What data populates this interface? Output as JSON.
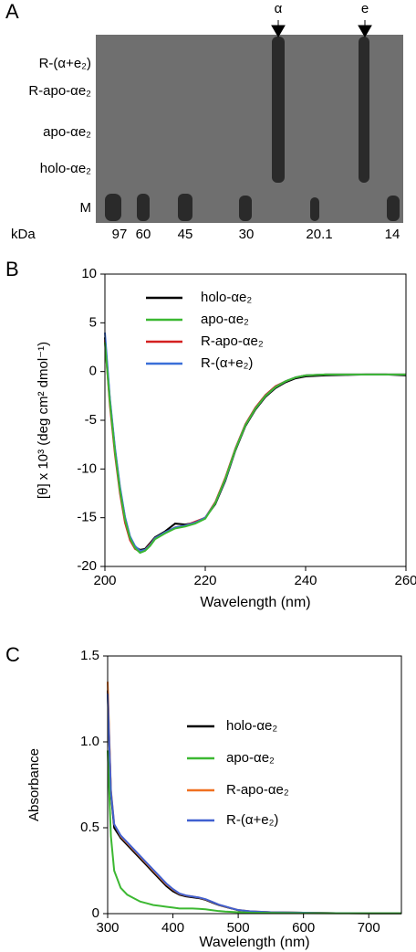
{
  "panel_a": {
    "label": "A",
    "arrows": [
      "α",
      "e"
    ],
    "lanes": [
      "R-(α+e₂)",
      "R-apo-αe₂",
      "apo-αe₂",
      "holo-αe₂",
      "M"
    ],
    "unit": "kDa",
    "markers": [
      "97",
      "60",
      "45",
      "30",
      "20.1",
      "14"
    ]
  },
  "chart_data": [
    {
      "type": "line",
      "panel_label": "B",
      "xlabel": "Wavelength  (nm)",
      "ylabel": "[θ] x 10³  (deg cm² dmol⁻¹)",
      "x": [
        200,
        201,
        202,
        203,
        204,
        205,
        206,
        207,
        208,
        209,
        210,
        212,
        214,
        216,
        218,
        220,
        222,
        224,
        226,
        228,
        230,
        232,
        234,
        236,
        238,
        240,
        244,
        248,
        252,
        256,
        260
      ],
      "series": [
        {
          "name": "holo-αe₂",
          "color": "#000000",
          "values": [
            3.5,
            -3,
            -8,
            -12,
            -15,
            -17,
            -18,
            -18.3,
            -18.2,
            -17.6,
            -17,
            -16.4,
            -15.6,
            -15.7,
            -15.5,
            -15,
            -13.6,
            -11.2,
            -8.1,
            -5.6,
            -3.9,
            -2.6,
            -1.7,
            -1.1,
            -0.7,
            -0.5,
            -0.4,
            -0.35,
            -0.3,
            -0.3,
            -0.4
          ]
        },
        {
          "name": "apo-αe₂",
          "color": "#3cb832",
          "values": [
            3,
            -3.2,
            -8.2,
            -12.2,
            -15.2,
            -17.1,
            -18.1,
            -18.6,
            -18.4,
            -17.9,
            -17.2,
            -16.6,
            -16.1,
            -15.9,
            -15.6,
            -15.1,
            -13.5,
            -11,
            -8,
            -5.5,
            -3.8,
            -2.5,
            -1.6,
            -1,
            -0.6,
            -0.4,
            -0.3,
            -0.3,
            -0.3,
            -0.3,
            -0.3
          ]
        },
        {
          "name": "R-apo-αe₂",
          "color": "#d42020",
          "values": [
            3.2,
            -3.5,
            -8.5,
            -12.5,
            -15.5,
            -17.3,
            -18.2,
            -18.5,
            -18.3,
            -17.7,
            -17.1,
            -16.5,
            -16,
            -15.8,
            -15.4,
            -15,
            -13.4,
            -10.9,
            -7.9,
            -5.4,
            -3.7,
            -2.4,
            -1.5,
            -1,
            -0.6,
            -0.4,
            -0.3,
            -0.3,
            -0.3,
            -0.3,
            -0.3
          ]
        },
        {
          "name": "R-(α+e₂)",
          "color": "#3a6fd8",
          "values": [
            4,
            -2.8,
            -7.8,
            -11.8,
            -14.9,
            -16.9,
            -17.9,
            -18.4,
            -18.3,
            -17.8,
            -17.1,
            -16.5,
            -16,
            -15.8,
            -15.5,
            -15,
            -13.5,
            -11.1,
            -8,
            -5.5,
            -3.8,
            -2.5,
            -1.6,
            -1,
            -0.6,
            -0.4,
            -0.3,
            -0.3,
            -0.3,
            -0.3,
            -0.3
          ]
        }
      ],
      "xlim": [
        200,
        260
      ],
      "xticks": [
        200,
        220,
        240,
        260
      ],
      "ylim": [
        -20,
        10
      ],
      "yticks": [
        10,
        5,
        0,
        -5,
        -10,
        -15,
        -20
      ]
    },
    {
      "type": "line",
      "panel_label": "C",
      "xlabel": "Wavelength  (nm)",
      "ylabel": "Absorbance",
      "x": [
        300,
        305,
        310,
        320,
        330,
        340,
        350,
        360,
        370,
        380,
        390,
        400,
        410,
        420,
        430,
        440,
        450,
        460,
        470,
        480,
        490,
        500,
        520,
        550,
        600,
        650,
        700,
        750
      ],
      "series": [
        {
          "name": "holo-αe₂",
          "color": "#000000",
          "values": [
            1.3,
            0.7,
            0.5,
            0.44,
            0.4,
            0.36,
            0.32,
            0.28,
            0.24,
            0.2,
            0.16,
            0.13,
            0.11,
            0.1,
            0.095,
            0.09,
            0.08,
            0.065,
            0.05,
            0.04,
            0.03,
            0.02,
            0.012,
            0.008,
            0.005,
            0.003,
            0.002,
            0.002
          ]
        },
        {
          "name": "apo-αe₂",
          "color": "#3cb832",
          "values": [
            0.95,
            0.45,
            0.25,
            0.15,
            0.11,
            0.09,
            0.07,
            0.06,
            0.05,
            0.045,
            0.04,
            0.035,
            0.03,
            0.03,
            0.03,
            0.028,
            0.025,
            0.02,
            0.015,
            0.012,
            0.01,
            0.008,
            0.005,
            0.004,
            0.003,
            0.002,
            0.002,
            0.002
          ]
        },
        {
          "name": "R-apo-αe₂",
          "color": "#f07020",
          "values": [
            1.35,
            0.72,
            0.52,
            0.45,
            0.41,
            0.37,
            0.33,
            0.29,
            0.25,
            0.21,
            0.17,
            0.14,
            0.115,
            0.105,
            0.1,
            0.093,
            0.083,
            0.068,
            0.052,
            0.041,
            0.031,
            0.021,
            0.013,
            0.008,
            0.005,
            0.003,
            0.002,
            0.002
          ]
        },
        {
          "name": "R-(α+e₂)",
          "color": "#4060d0",
          "values": [
            1.28,
            0.71,
            0.52,
            0.455,
            0.415,
            0.375,
            0.335,
            0.295,
            0.255,
            0.215,
            0.175,
            0.143,
            0.117,
            0.106,
            0.1,
            0.094,
            0.084,
            0.069,
            0.053,
            0.042,
            0.031,
            0.021,
            0.013,
            0.008,
            0.005,
            0.003,
            0.002,
            0.002
          ]
        }
      ],
      "xlim": [
        300,
        750
      ],
      "xticks": [
        300,
        400,
        500,
        600,
        700
      ],
      "ylim": [
        0,
        1.5
      ],
      "yticks": [
        0,
        0.5,
        {
          "value": 1,
          "label": "1.0"
        },
        1.5
      ]
    }
  ]
}
